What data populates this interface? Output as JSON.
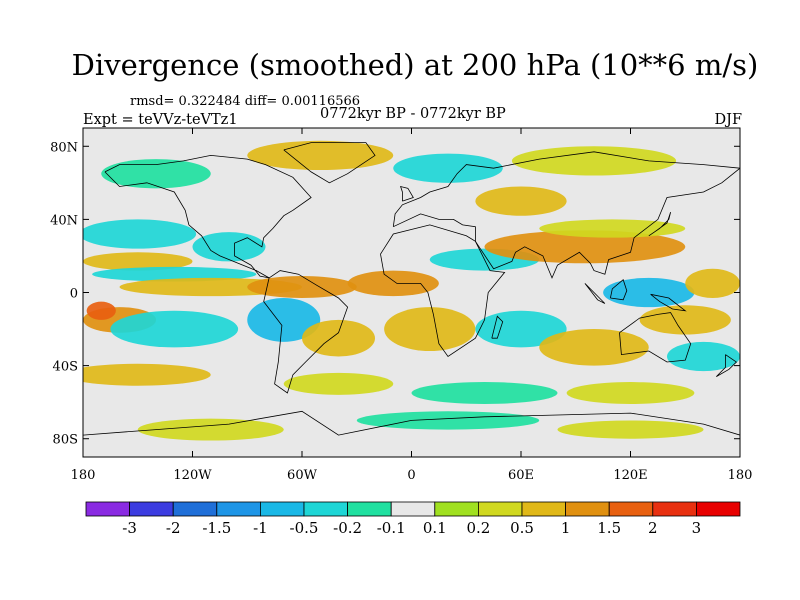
{
  "header": {
    "title": "Divergence (smoothed) at 200 hPa (10**6 m/s)",
    "stats": "rmsd= 0.322484 diff= 0.00116566",
    "experiment": "Expt = teVVz-teVTz1",
    "period": "0772kyr BP - 0772kyr BP",
    "season": "DJF"
  },
  "map": {
    "lon_range": [
      -180,
      180
    ],
    "lat_range": [
      -90,
      90
    ],
    "x_ticks": [
      {
        "value": -180,
        "label": "180"
      },
      {
        "value": -120,
        "label": "120W"
      },
      {
        "value": -60,
        "label": "60W"
      },
      {
        "value": 0,
        "label": "0"
      },
      {
        "value": 60,
        "label": "60E"
      },
      {
        "value": 120,
        "label": "120E"
      },
      {
        "value": 180,
        "label": "180"
      }
    ],
    "y_ticks": [
      {
        "value": 80,
        "label": "80N"
      },
      {
        "value": 40,
        "label": "40N"
      },
      {
        "value": 0,
        "label": "0"
      },
      {
        "value": -40,
        "label": "40S"
      },
      {
        "value": -80,
        "label": "80S"
      }
    ],
    "background_color": "#e8e8e8",
    "coastline_color": "#000000"
  },
  "colorbar": {
    "colors": [
      "#8a2be2",
      "#3c3ce0",
      "#1f6fd8",
      "#1e95e6",
      "#1ab8e6",
      "#1ed6d6",
      "#20e0a0",
      "#e8e8e8",
      "#a0e020",
      "#d0d820",
      "#e0b818",
      "#e09010",
      "#e86010",
      "#e83010",
      "#e80000"
    ],
    "labels": [
      "-3",
      "-2",
      "-1.5",
      "-1",
      "-0.5",
      "-0.2",
      "-0.1",
      "0.1",
      "0.2",
      "0.5",
      "1",
      "1.5",
      "2",
      "3"
    ]
  },
  "field_regions": [
    {
      "lon": -150,
      "lat": 32,
      "rx": 32,
      "ry": 8,
      "level": -0.5
    },
    {
      "lon": -100,
      "lat": 25,
      "rx": 20,
      "ry": 8,
      "level": -0.5
    },
    {
      "lon": -150,
      "lat": 17,
      "rx": 30,
      "ry": 5,
      "level": 0.5
    },
    {
      "lon": -130,
      "lat": 10,
      "rx": 45,
      "ry": 4,
      "level": -0.5
    },
    {
      "lon": -110,
      "lat": 3,
      "rx": 50,
      "ry": 5,
      "level": 0.5
    },
    {
      "lon": -60,
      "lat": 3,
      "rx": 30,
      "ry": 6,
      "level": 1
    },
    {
      "lon": -10,
      "lat": 5,
      "rx": 25,
      "ry": 7,
      "level": 1
    },
    {
      "lon": 40,
      "lat": 18,
      "rx": 30,
      "ry": 6,
      "level": -0.5
    },
    {
      "lon": 95,
      "lat": 25,
      "rx": 55,
      "ry": 9,
      "level": 1
    },
    {
      "lon": 110,
      "lat": 35,
      "rx": 40,
      "ry": 5,
      "level": 0.2
    },
    {
      "lon": 130,
      "lat": 0,
      "rx": 25,
      "ry": 8,
      "level": -1
    },
    {
      "lon": 165,
      "lat": 5,
      "rx": 15,
      "ry": 8,
      "level": 0.5
    },
    {
      "lon": 150,
      "lat": -15,
      "rx": 25,
      "ry": 8,
      "level": 0.5
    },
    {
      "lon": -160,
      "lat": -15,
      "rx": 20,
      "ry": 7,
      "level": 1
    },
    {
      "lon": -170,
      "lat": -10,
      "rx": 8,
      "ry": 5,
      "level": 1.5
    },
    {
      "lon": -130,
      "lat": -20,
      "rx": 35,
      "ry": 10,
      "level": -0.5
    },
    {
      "lon": -70,
      "lat": -15,
      "rx": 20,
      "ry": 12,
      "level": -1
    },
    {
      "lon": -40,
      "lat": -25,
      "rx": 20,
      "ry": 10,
      "level": 0.5
    },
    {
      "lon": 10,
      "lat": -20,
      "rx": 25,
      "ry": 12,
      "level": 0.5
    },
    {
      "lon": 60,
      "lat": -20,
      "rx": 25,
      "ry": 10,
      "level": -0.5
    },
    {
      "lon": 100,
      "lat": -30,
      "rx": 30,
      "ry": 10,
      "level": 0.5
    },
    {
      "lon": 160,
      "lat": -35,
      "rx": 20,
      "ry": 8,
      "level": -0.5
    },
    {
      "lon": -150,
      "lat": -45,
      "rx": 40,
      "ry": 6,
      "level": 0.5
    },
    {
      "lon": -40,
      "lat": -50,
      "rx": 30,
      "ry": 6,
      "level": 0.2
    },
    {
      "lon": 40,
      "lat": -55,
      "rx": 40,
      "ry": 6,
      "level": -0.2
    },
    {
      "lon": 120,
      "lat": -55,
      "rx": 35,
      "ry": 6,
      "level": 0.2
    },
    {
      "lon": -110,
      "lat": -75,
      "rx": 40,
      "ry": 6,
      "level": 0.2
    },
    {
      "lon": 20,
      "lat": -70,
      "rx": 50,
      "ry": 5,
      "level": -0.2
    },
    {
      "lon": 120,
      "lat": -75,
      "rx": 40,
      "ry": 5,
      "level": 0.2
    },
    {
      "lon": -50,
      "lat": 75,
      "rx": 40,
      "ry": 8,
      "level": 0.5
    },
    {
      "lon": 20,
      "lat": 68,
      "rx": 30,
      "ry": 8,
      "level": -0.5
    },
    {
      "lon": 100,
      "lat": 72,
      "rx": 45,
      "ry": 8,
      "level": 0.2
    },
    {
      "lon": -140,
      "lat": 65,
      "rx": 30,
      "ry": 8,
      "level": -0.2
    },
    {
      "lon": 60,
      "lat": 50,
      "rx": 25,
      "ry": 8,
      "level": 0.5
    }
  ],
  "coastlines": {
    "north_america": [
      [
        -168,
        66
      ],
      [
        -160,
        70
      ],
      [
        -140,
        70
      ],
      [
        -125,
        72
      ],
      [
        -110,
        75
      ],
      [
        -90,
        73
      ],
      [
        -80,
        70
      ],
      [
        -65,
        63
      ],
      [
        -55,
        52
      ],
      [
        -65,
        45
      ],
      [
        -70,
        42
      ],
      [
        -76,
        35
      ],
      [
        -81,
        30
      ],
      [
        -82,
        25
      ],
      [
        -90,
        30
      ],
      [
        -97,
        27
      ],
      [
        -97,
        20
      ],
      [
        -88,
        15
      ],
      [
        -83,
        9
      ],
      [
        -78,
        8
      ],
      [
        -85,
        12
      ],
      [
        -95,
        16
      ],
      [
        -105,
        20
      ],
      [
        -110,
        23
      ],
      [
        -115,
        31
      ],
      [
        -122,
        37
      ],
      [
        -124,
        45
      ],
      [
        -130,
        55
      ],
      [
        -145,
        60
      ],
      [
        -160,
        58
      ],
      [
        -168,
        66
      ]
    ],
    "south_america": [
      [
        -78,
        8
      ],
      [
        -72,
        12
      ],
      [
        -62,
        10
      ],
      [
        -52,
        4
      ],
      [
        -40,
        -3
      ],
      [
        -35,
        -8
      ],
      [
        -40,
        -22
      ],
      [
        -48,
        -28
      ],
      [
        -58,
        -38
      ],
      [
        -65,
        -45
      ],
      [
        -68,
        -55
      ],
      [
        -75,
        -50
      ],
      [
        -73,
        -38
      ],
      [
        -71,
        -18
      ],
      [
        -81,
        -5
      ],
      [
        -78,
        8
      ]
    ],
    "greenland": [
      [
        -70,
        78
      ],
      [
        -55,
        82
      ],
      [
        -25,
        82
      ],
      [
        -20,
        75
      ],
      [
        -35,
        65
      ],
      [
        -45,
        60
      ],
      [
        -55,
        66
      ],
      [
        -70,
        78
      ]
    ],
    "africa": [
      [
        -17,
        21
      ],
      [
        -10,
        32
      ],
      [
        10,
        37
      ],
      [
        30,
        31
      ],
      [
        35,
        28
      ],
      [
        43,
        12
      ],
      [
        51,
        11
      ],
      [
        42,
        0
      ],
      [
        40,
        -15
      ],
      [
        35,
        -25
      ],
      [
        20,
        -35
      ],
      [
        15,
        -28
      ],
      [
        12,
        -12
      ],
      [
        9,
        0
      ],
      [
        5,
        5
      ],
      [
        -8,
        5
      ],
      [
        -15,
        10
      ],
      [
        -17,
        21
      ]
    ],
    "eurasia": [
      [
        -10,
        36
      ],
      [
        -9,
        43
      ],
      [
        -5,
        48
      ],
      [
        5,
        52
      ],
      [
        10,
        55
      ],
      [
        20,
        58
      ],
      [
        25,
        65
      ],
      [
        30,
        70
      ],
      [
        45,
        68
      ],
      [
        70,
        73
      ],
      [
        100,
        77
      ],
      [
        130,
        72
      ],
      [
        160,
        70
      ],
      [
        180,
        68
      ],
      [
        170,
        60
      ],
      [
        160,
        55
      ],
      [
        140,
        52
      ],
      [
        135,
        40
      ],
      [
        122,
        30
      ],
      [
        120,
        22
      ],
      [
        108,
        18
      ],
      [
        106,
        10
      ],
      [
        100,
        12
      ],
      [
        98,
        16
      ],
      [
        92,
        22
      ],
      [
        80,
        15
      ],
      [
        77,
        8
      ],
      [
        72,
        20
      ],
      [
        62,
        25
      ],
      [
        57,
        22
      ],
      [
        55,
        17
      ],
      [
        45,
        13
      ],
      [
        35,
        28
      ],
      [
        35,
        36
      ],
      [
        28,
        37
      ],
      [
        23,
        40
      ],
      [
        15,
        40
      ],
      [
        5,
        43
      ],
      [
        -10,
        36
      ]
    ],
    "australia": [
      [
        114,
        -22
      ],
      [
        125,
        -14
      ],
      [
        135,
        -12
      ],
      [
        142,
        -11
      ],
      [
        146,
        -18
      ],
      [
        153,
        -28
      ],
      [
        150,
        -37
      ],
      [
        140,
        -38
      ],
      [
        130,
        -32
      ],
      [
        115,
        -34
      ],
      [
        114,
        -22
      ]
    ],
    "antarctica": [
      [
        -180,
        -78
      ],
      [
        -140,
        -75
      ],
      [
        -100,
        -72
      ],
      [
        -60,
        -65
      ],
      [
        -40,
        -78
      ],
      [
        0,
        -70
      ],
      [
        40,
        -68
      ],
      [
        80,
        -67
      ],
      [
        120,
        -66
      ],
      [
        160,
        -72
      ],
      [
        180,
        -78
      ]
    ],
    "madagascar": [
      [
        44,
        -25
      ],
      [
        47,
        -13
      ],
      [
        50,
        -16
      ],
      [
        47,
        -25
      ],
      [
        44,
        -25
      ]
    ],
    "japan": [
      [
        130,
        31
      ],
      [
        136,
        35
      ],
      [
        141,
        40
      ],
      [
        142,
        44
      ],
      [
        140,
        38
      ],
      [
        133,
        33
      ],
      [
        130,
        31
      ]
    ],
    "borneo": [
      [
        109,
        -3
      ],
      [
        110,
        2
      ],
      [
        116,
        7
      ],
      [
        118,
        1
      ],
      [
        116,
        -4
      ],
      [
        109,
        -3
      ]
    ],
    "sumatra": [
      [
        95,
        5
      ],
      [
        100,
        0
      ],
      [
        106,
        -6
      ],
      [
        102,
        -4
      ],
      [
        95,
        5
      ]
    ],
    "new_guinea": [
      [
        131,
        -1
      ],
      [
        141,
        -3
      ],
      [
        150,
        -10
      ],
      [
        143,
        -9
      ],
      [
        136,
        -5
      ],
      [
        131,
        -1
      ]
    ],
    "uk": [
      [
        -5,
        50
      ],
      [
        1,
        52
      ],
      [
        -2,
        57
      ],
      [
        -6,
        58
      ],
      [
        -5,
        55
      ],
      [
        -5,
        50
      ]
    ],
    "new_zealand": [
      [
        172,
        -34
      ],
      [
        178,
        -38
      ],
      [
        174,
        -42
      ],
      [
        167,
        -46
      ],
      [
        172,
        -41
      ],
      [
        172,
        -34
      ]
    ]
  }
}
